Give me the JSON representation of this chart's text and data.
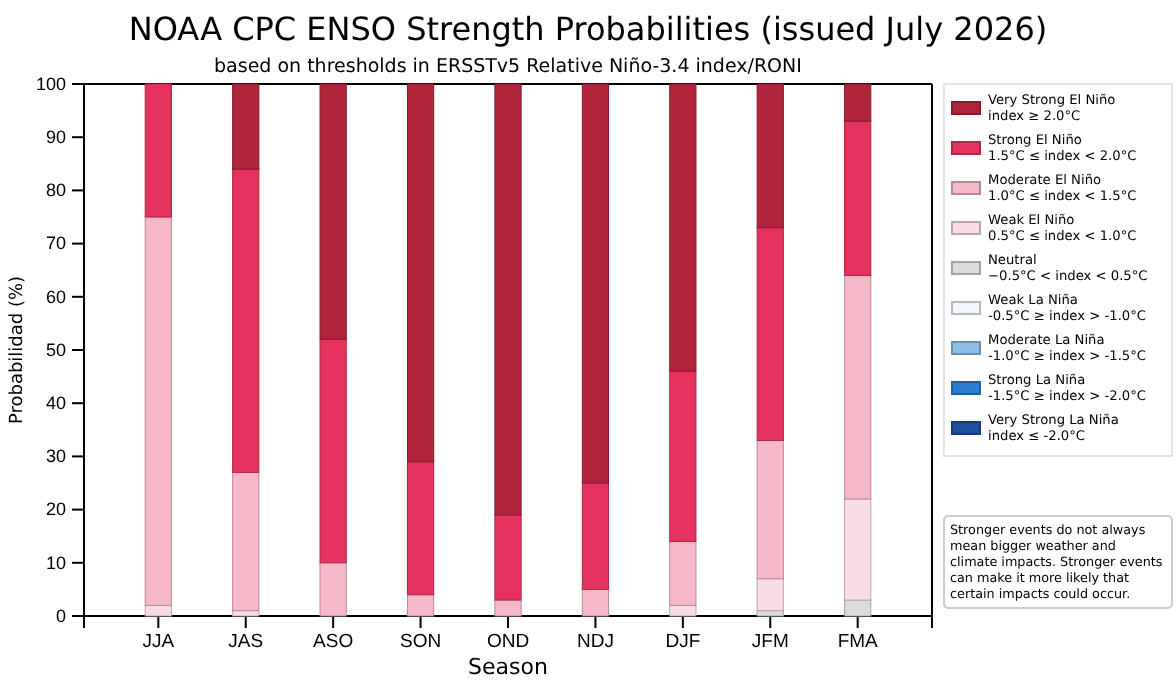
{
  "chart_data": {
    "type": "bar",
    "stacked": true,
    "title": "NOAA CPC ENSO Strength Probabilities (issued July 2026)",
    "subtitle": "based on thresholds in ERSSTv5 Relative Niño-3.4 index/RONI",
    "xlabel": "Season",
    "ylabel": "Probabilidad (%)",
    "categories": [
      "JJA",
      "JAS",
      "ASO",
      "SON",
      "OND",
      "NDJ",
      "DJF",
      "JFM",
      "FMA"
    ],
    "series": [
      {
        "name": "Very Strong La Niña\nindex ≤ -2.0°C",
        "color": "#1f4f9c",
        "values": [
          0,
          0,
          0,
          0,
          0,
          0,
          0,
          0,
          0
        ]
      },
      {
        "name": "Strong La Niña\n-1.5°C ≥ index > -2.0°C",
        "color": "#2e7fd1",
        "values": [
          0,
          0,
          0,
          0,
          0,
          0,
          0,
          0,
          0
        ]
      },
      {
        "name": "Moderate La Niña\n-1.0°C ≥ index > -1.5°C",
        "color": "#8cc0ea",
        "values": [
          0,
          0,
          0,
          0,
          0,
          0,
          0,
          0,
          0
        ]
      },
      {
        "name": "Weak La Niña\n-0.5°C ≥ index > -1.0°C",
        "color": "#f2f7fd",
        "values": [
          0,
          0,
          0,
          0,
          0,
          0,
          0,
          0,
          0
        ]
      },
      {
        "name": "Neutral\n−0.5°C < index < 0.5°C",
        "color": "#dcdcdc",
        "values": [
          0,
          0,
          0,
          0,
          0,
          0,
          0,
          1,
          3
        ]
      },
      {
        "name": "Weak El Niño\n0.5°C ≤ index < 1.0°C",
        "color": "#f9dce4",
        "values": [
          2,
          1,
          0,
          0,
          0,
          0,
          2,
          6,
          19
        ]
      },
      {
        "name": "Moderate El Niño\n1.0°C ≤ index < 1.5°C",
        "color": "#f4b8c8",
        "values": [
          73,
          26,
          10,
          4,
          3,
          5,
          12,
          26,
          42
        ]
      },
      {
        "name": "Strong El Niño\n1.5°C ≤ index < 2.0°C",
        "color": "#e6325f",
        "values": [
          25,
          57,
          42,
          25,
          16,
          20,
          32,
          40,
          29
        ]
      },
      {
        "name": "Very Strong El Niño\nindex ≥ 2.0°C",
        "color": "#b0243c",
        "values": [
          0,
          16,
          48,
          71,
          81,
          75,
          54,
          27,
          7
        ]
      }
    ],
    "ylim": [
      0,
      100
    ],
    "yticks": [
      0,
      10,
      20,
      30,
      40,
      50,
      60,
      70,
      80,
      90,
      100
    ],
    "grid": false,
    "legend": "right",
    "annotations": [
      "Stronger events do not always mean bigger weather and climate impacts. Stronger events can make it more likely that certain impacts could occur."
    ]
  }
}
